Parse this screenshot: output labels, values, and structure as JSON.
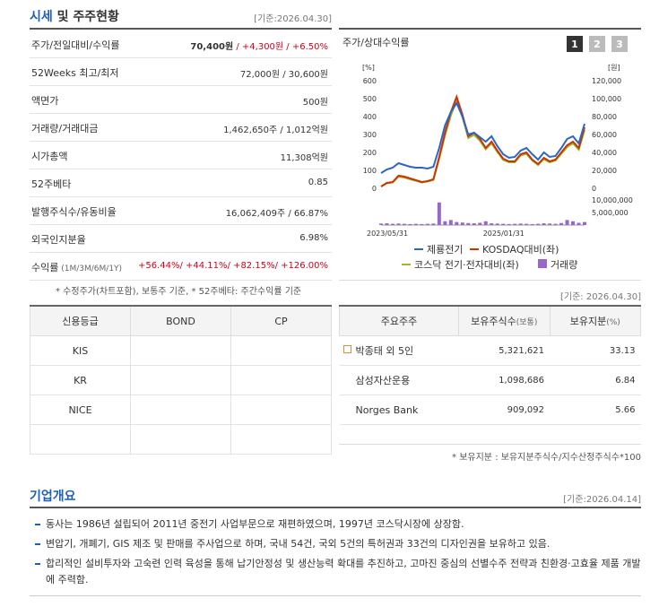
{
  "header": {
    "title_main": "시세",
    "title_rest": " 및 주주현황",
    "date": "[기준:2026.04.30]"
  },
  "stock_table": {
    "rows": [
      {
        "label": "주가/전일대비/수익률",
        "value": [
          "70,400원",
          " / +4,300원",
          " / +6.50%"
        ]
      },
      {
        "label": "52Weeks 최고/최저",
        "value": "72,000원 / 30,600원"
      },
      {
        "label": "액면가",
        "value": "500원"
      },
      {
        "label": "거래량/거래대금",
        "value": "1,462,650주 / 1,012억원"
      },
      {
        "label": "시가총액",
        "value": "11,308억원"
      },
      {
        "label": "52주베타",
        "value": "0.85"
      },
      {
        "label": "발행주식수/유동비율",
        "value": "16,062,409주 / 66.87%"
      },
      {
        "label": "외국인지분율",
        "value": "6.98%"
      },
      {
        "label": "수익률",
        "label_sub": " (1M/3M/6M/1Y)",
        "value": "+56.44%/ +44.11%/ +82.15%/ +126.00%"
      }
    ],
    "note": "* 수정주가(차트포함), 보통주 기준, * 52주베타: 주간수익률 기준"
  },
  "chart_data": {
    "type": "line",
    "title": "주가/상대수익률",
    "tabs": [
      "1",
      "2",
      "3"
    ],
    "ylabel": "[%]",
    "y2label": "[원]",
    "categories": [
      "2023/05/31",
      null,
      null,
      null,
      null,
      null,
      null,
      null,
      null,
      null,
      null,
      null,
      null,
      null,
      null,
      null,
      null,
      null,
      null,
      null,
      "2025/01/31",
      null,
      null,
      null,
      null,
      null,
      null,
      null,
      null,
      null,
      null,
      null,
      null,
      null,
      null,
      null
    ],
    "ylim": [
      0,
      600
    ],
    "yticks": [
      0,
      100,
      200,
      300,
      400,
      500,
      600
    ],
    "y2lim": [
      0,
      120000
    ],
    "y2ticks": [
      0,
      {
        "value": 20000,
        "label": "20,000"
      },
      {
        "value": 40000,
        "label": "40,000"
      },
      {
        "value": 60000,
        "label": "60,000"
      },
      {
        "value": 80000,
        "label": "80,000"
      },
      {
        "value": 100000,
        "label": "100,000"
      },
      {
        "value": 120000,
        "label": "120,000"
      }
    ],
    "y3lim": [
      0,
      10000000
    ],
    "y3ticks": [
      {
        "value": 5000000,
        "label": "5,000,000"
      },
      {
        "value": 10000000,
        "label": "10,000,000"
      }
    ],
    "series": [
      {
        "name": "제룡전기",
        "color": "#2f63c4",
        "axis": "y2",
        "values": [
          17000,
          21000,
          23000,
          28000,
          26000,
          24000,
          23000,
          23000,
          22000,
          24000,
          45000,
          70000,
          85000,
          95000,
          80000,
          60000,
          62000,
          57000,
          52000,
          58000,
          47000,
          38000,
          34000,
          35000,
          42000,
          45000,
          38000,
          32000,
          40000,
          35000,
          36000,
          45000,
          55000,
          58000,
          50000,
          72000
        ]
      },
      {
        "name": "KOSDAQ대비(좌)",
        "color": "#cc3300",
        "values": [
          10,
          30,
          35,
          70,
          65,
          55,
          45,
          35,
          40,
          50,
          175,
          310,
          425,
          510,
          410,
          290,
          310,
          275,
          225,
          260,
          210,
          165,
          150,
          150,
          190,
          200,
          160,
          135,
          170,
          150,
          160,
          200,
          240,
          260,
          225,
          340
        ]
      },
      {
        "name": "코스닥 전기·전자대비(좌)",
        "color": "#99bb33",
        "values": [
          10,
          28,
          32,
          65,
          60,
          50,
          42,
          32,
          38,
          46,
          165,
          295,
          405,
          490,
          395,
          280,
          298,
          265,
          218,
          250,
          202,
          158,
          145,
          145,
          182,
          192,
          155,
          130,
          162,
          145,
          155,
          192,
          230,
          250,
          215,
          325
        ]
      },
      {
        "name": "거래량",
        "color": "#9966cc",
        "type": "bar",
        "axis": "y3",
        "values": [
          600000,
          700000,
          500000,
          600000,
          500000,
          400000,
          500000,
          400000,
          500000,
          600000,
          9000000,
          1500000,
          2000000,
          1200000,
          1000000,
          800000,
          700000,
          900000,
          1500000,
          700000,
          600000,
          500000,
          400000,
          500000,
          600000,
          500000,
          400000,
          500000,
          700000,
          600000,
          500000,
          800000,
          2000000,
          1500000,
          900000,
          1200000
        ]
      }
    ]
  },
  "rating_table": {
    "headers": [
      "신용등급",
      "BOND",
      "CP"
    ],
    "rows": [
      [
        "KIS"
      ],
      [
        "KR"
      ],
      [
        "NICE"
      ]
    ]
  },
  "holder_section": {
    "date": "[기준: 2026.04.30]",
    "headers": [
      [
        "주요주주"
      ],
      [
        "보유주식수",
        "(보통)"
      ],
      [
        "보유지분",
        "(%)"
      ]
    ],
    "rows": [
      [
        "박종태 외 5인",
        "5,321,621",
        "33.13"
      ],
      [
        "삼성자산운용",
        "1,098,686",
        "6.84"
      ],
      [
        "Norges Bank",
        "909,092",
        "5.66"
      ]
    ],
    "note": "* 보유지분 : 보유지분주식수/지수산정주식수*100"
  },
  "company": {
    "title": "기업개요",
    "date": "[기준:2026.04.14]",
    "items": [
      "동사는 1986년 설립되어 2011년 중전기 사업부문으로 재편하였으며, 1997년 코스닥시장에 상장함.",
      "변압기, 개폐기, GIS 제조 및 판매를 주사업으로 하며, 국내 54건, 국외 5건의 특허권과 33건의 디자인권을 보유하고 있음.",
      "합리적인 설비투자와 고숙련 인력 육성을 통해 납기안정성 및 생산능력 확대를 추진하고, 고마진 중심의 선별수주 전략과 친환경·고효율 제품 개발에 주력함."
    ]
  }
}
